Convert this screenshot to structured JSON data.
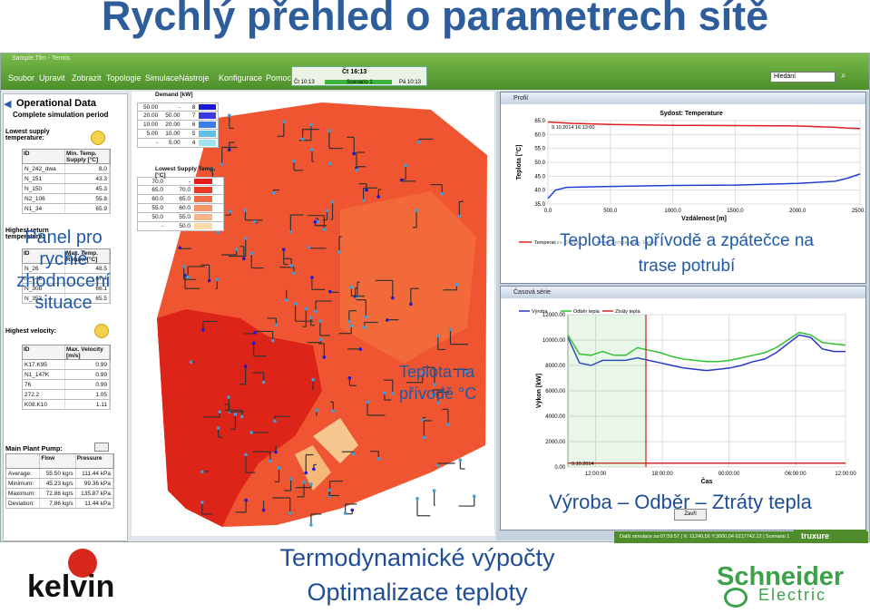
{
  "title": "Rychlý přehled o parametrech sítě",
  "window": {
    "title": "Sample.Tfm - Termis",
    "menu": [
      "Soubor",
      "Upravit",
      "Zobrazit",
      "Topologie",
      "Simulace",
      "Nástroje",
      "Konfigurace",
      "Pomoc"
    ],
    "time": {
      "label": "Čt 16:13",
      "start": "Čt 10:13",
      "scenario": "Scenario 1",
      "end": "Pá 10:13"
    },
    "search_value": "Hledání",
    "status": "Další simulace za:07:59:57 | X: 11240,56 Y:3000,04 6217742.12 | Scenario 1"
  },
  "left_panel": {
    "title": "Operational Data",
    "subtitle": "Complete simulation period",
    "lowest_supply": {
      "title": "Lowest supply temperature:",
      "headers": [
        "ID",
        "Min. Temp. Supply [°C]"
      ],
      "rows": [
        [
          "N_242_dwa",
          "8.0"
        ],
        [
          "N_151",
          "43.3"
        ],
        [
          "N_150",
          "45.3"
        ],
        [
          "N2_106",
          "55.8"
        ],
        [
          "N1_34",
          "65.9"
        ]
      ]
    },
    "highest_return": {
      "title": "Highest return temperature:",
      "headers": [
        "ID",
        "Max. Temp. Return [°C]"
      ],
      "rows": [
        [
          "N_26",
          "48.5"
        ],
        [
          "N_148",
          "67.4"
        ],
        [
          "N_308",
          "66.1"
        ],
        [
          "N_353",
          "65.5"
        ]
      ]
    },
    "highest_velocity": {
      "title": "Highest velocity:",
      "headers": [
        "ID",
        "Max. Velocity [m/s]"
      ],
      "rows": [
        [
          "K17.K95",
          "0.99"
        ],
        [
          "N1_147K",
          "0.99"
        ],
        [
          "76",
          "0.99"
        ],
        [
          "272.2",
          "1.05"
        ],
        [
          "K08.K10",
          "1.11"
        ]
      ]
    },
    "pump": {
      "title": "Main Plant Pump:",
      "headers": [
        "",
        "Flow",
        "Pressure"
      ],
      "rows": [
        [
          "Average:",
          "55.50 kg/s",
          "111.44 kPa"
        ],
        [
          "Minimum:",
          "45.23 kg/s",
          "99.36 kPa"
        ],
        [
          "Maximum:",
          "72.86 kg/s",
          "135.87 kPa"
        ],
        [
          "Deviation:",
          "7.86 kg/s",
          "11.44 kPa"
        ]
      ]
    }
  },
  "map": {
    "demand_legend": {
      "title": "Demand [kW]",
      "rows": [
        [
          "50.00",
          "-",
          "8"
        ],
        [
          "20.00",
          "50.00",
          "7"
        ],
        [
          "10.00",
          "20.00",
          "6"
        ],
        [
          "5.00",
          "10.00",
          "5"
        ],
        [
          "-",
          "5.00",
          "4"
        ]
      ],
      "colors": [
        "#1a1ad6",
        "#3a3ae0",
        "#3c7ee8",
        "#60c0e8",
        "#9ee4f0"
      ]
    },
    "temp_legend": {
      "title": "Lowest Supply Temp. [°C]",
      "rows": [
        [
          "70.0",
          "-"
        ],
        [
          "65.0",
          "70.0"
        ],
        [
          "60.0",
          "65.0"
        ],
        [
          "55.0",
          "60.0"
        ],
        [
          "50.0",
          "55.0"
        ],
        [
          "-",
          "50.0"
        ]
      ],
      "colors": [
        "#e0201c",
        "#ec3a28",
        "#f06a4a",
        "#f49468",
        "#f6b888",
        "#f8dca8"
      ]
    }
  },
  "profile": {
    "window_title": "Profil",
    "chart_title": "Sydost: Temperature",
    "date_label": "9.10.2014 16:13:00",
    "legend": [
      "Temperature, Supply",
      "Temperature, Return"
    ],
    "colors": [
      "#e02020",
      "#2040d0"
    ]
  },
  "series_window": {
    "window_title": "Časová série",
    "legend": [
      "Výroba",
      "Odběr tepla",
      "Ztráty tepla"
    ],
    "colors": [
      "#2838c8",
      "#30c030",
      "#d02828"
    ],
    "date_label": "9.10.2014",
    "button": "Zavři"
  },
  "chart_data": [
    {
      "type": "line",
      "title": "Sydost: Temperature",
      "xlabel": "Vzdálenost [m]",
      "ylabel": "Teplota [°C]",
      "ylim": [
        35,
        65
      ],
      "xlim": [
        0,
        2500
      ],
      "x_ticks": [
        "0.0",
        "500.0",
        "1000.0",
        "1500.0",
        "2000.0",
        "2500.0"
      ],
      "y_ticks": [
        "35.0",
        "40.0",
        "45.0",
        "50.0",
        "55.0",
        "60.0",
        "65.0"
      ],
      "series": [
        {
          "name": "Temperature, Supply",
          "x": [
            0,
            200,
            500,
            1000,
            1500,
            2000,
            2300,
            2400,
            2500
          ],
          "values": [
            64.5,
            64.0,
            63.6,
            63.3,
            63.2,
            63.1,
            62.6,
            62.3,
            62.1
          ]
        },
        {
          "name": "Temperature, Return",
          "x": [
            0,
            60,
            150,
            500,
            1000,
            1500,
            2000,
            2300,
            2400,
            2500
          ],
          "values": [
            37,
            40,
            41,
            41.3,
            41.7,
            41.8,
            42.4,
            43.2,
            44.3,
            45.8
          ]
        }
      ]
    },
    {
      "type": "line",
      "xlabel": "Čas",
      "ylabel": "Výkon [kW]",
      "ylim": [
        0,
        12000
      ],
      "x_ticks": [
        "12:00:00",
        "18:00:00",
        "00:00:00",
        "06:00:00",
        "12:00:00"
      ],
      "y_ticks": [
        "0.00",
        "2000.00",
        "4000.00",
        "6000.00",
        "8000.00",
        "10000.00",
        "12000.00"
      ],
      "series": [
        {
          "name": "Výroba",
          "x": [
            0,
            1,
            2,
            3,
            4,
            5,
            6,
            7,
            8,
            9,
            10,
            11,
            12,
            13,
            14,
            15,
            16,
            17,
            18,
            19,
            20,
            21,
            22,
            23,
            24
          ],
          "values": [
            10200,
            8200,
            8000,
            8400,
            8400,
            8400,
            8600,
            8400,
            8200,
            8000,
            7800,
            7700,
            7600,
            7700,
            7800,
            8000,
            8300,
            8500,
            9000,
            9700,
            10400,
            10200,
            9300,
            9100,
            9100
          ]
        },
        {
          "name": "Odběr tepla",
          "x": [
            0,
            1,
            2,
            3,
            4,
            5,
            6,
            7,
            8,
            9,
            10,
            11,
            12,
            13,
            14,
            15,
            16,
            17,
            18,
            19,
            20,
            21,
            22,
            23,
            24
          ],
          "values": [
            10400,
            8900,
            8800,
            9100,
            8800,
            8800,
            9400,
            9200,
            9000,
            8700,
            8500,
            8400,
            8300,
            8300,
            8400,
            8600,
            8800,
            9000,
            9400,
            10000,
            10600,
            10400,
            9800,
            9700,
            9600
          ]
        },
        {
          "name": "Ztráty tepla",
          "x": [
            0,
            24
          ],
          "values": [
            300,
            300
          ]
        }
      ]
    }
  ],
  "overlays": {
    "panel": "Panel pro rychlé zhodnocení situace",
    "supply": "Teplota na přívodě °C",
    "return": "Teplota na přívodě a zpátečce na trase potrubí",
    "series": "Výroba – Odběr – Ztráty tepla",
    "calc1": "Termodynamické výpočty",
    "calc2": "Optimalizace teploty"
  },
  "logos": {
    "kelvin": "kelvin",
    "schneider1": "Schneider",
    "schneider2": "Electric",
    "truxure": "truxure"
  }
}
